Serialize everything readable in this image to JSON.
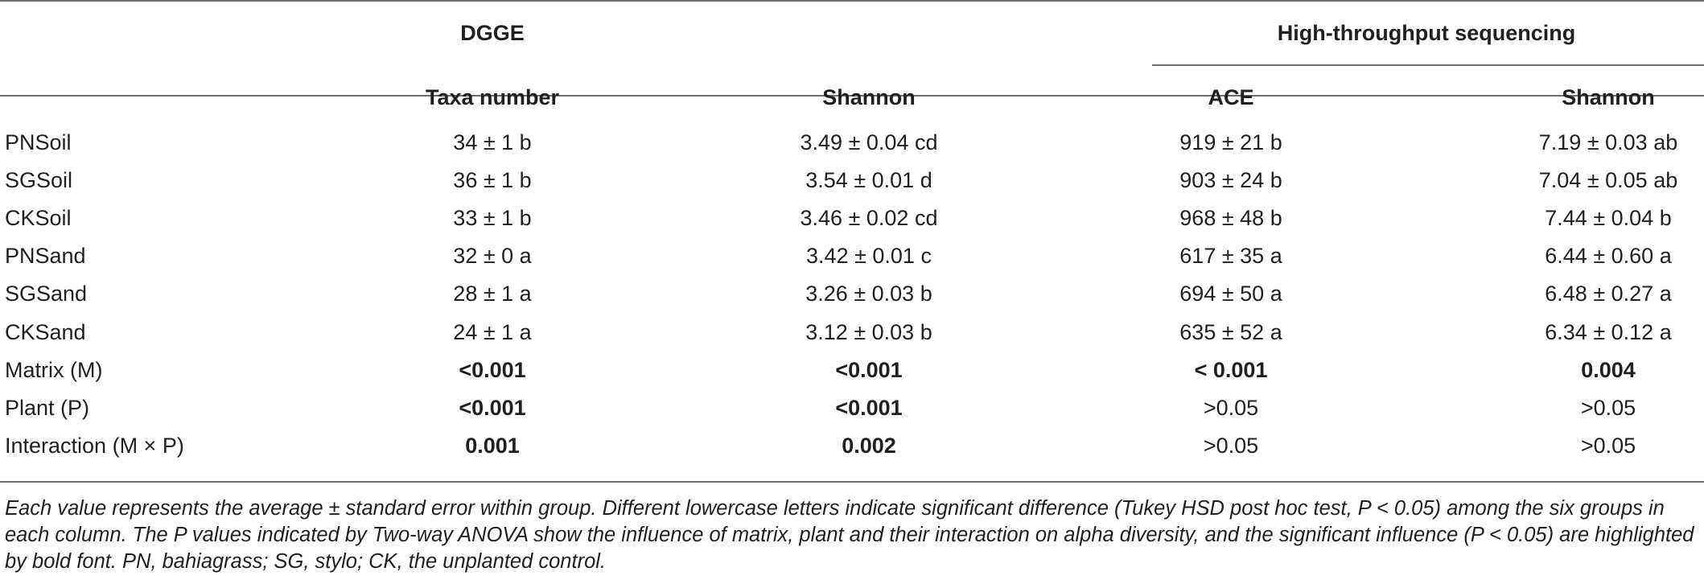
{
  "table": {
    "group_headers": {
      "dgge": "DGGE",
      "hts": "High-throughput sequencing"
    },
    "column_headers": [
      "Taxa number",
      "Shannon",
      "ACE",
      "Shannon"
    ],
    "rows": [
      {
        "label": "PNSoil",
        "cells": [
          "34 ± 1 b",
          "3.49 ± 0.04 cd",
          "919 ± 21 b",
          "7.19 ± 0.03 ab"
        ],
        "bold": [
          false,
          false,
          false,
          false
        ]
      },
      {
        "label": "SGSoil",
        "cells": [
          "36 ± 1 b",
          "3.54 ± 0.01 d",
          "903 ± 24 b",
          "7.04 ± 0.05 ab"
        ],
        "bold": [
          false,
          false,
          false,
          false
        ]
      },
      {
        "label": "CKSoil",
        "cells": [
          "33 ± 1 b",
          "3.46 ± 0.02 cd",
          "968 ± 48 b",
          "7.44 ± 0.04 b"
        ],
        "bold": [
          false,
          false,
          false,
          false
        ]
      },
      {
        "label": "PNSand",
        "cells": [
          "32 ± 0 a",
          "3.42 ± 0.01 c",
          "617 ± 35 a",
          "6.44 ± 0.60 a"
        ],
        "bold": [
          false,
          false,
          false,
          false
        ]
      },
      {
        "label": "SGSand",
        "cells": [
          "28 ± 1 a",
          "3.26 ± 0.03 b",
          "694 ± 50 a",
          "6.48 ± 0.27 a"
        ],
        "bold": [
          false,
          false,
          false,
          false
        ]
      },
      {
        "label": "CKSand",
        "cells": [
          "24 ± 1 a",
          "3.12 ± 0.03 b",
          "635 ± 52 a",
          "6.34 ± 0.12 a"
        ],
        "bold": [
          false,
          false,
          false,
          false
        ]
      },
      {
        "label": "Matrix (M)",
        "cells": [
          "<0.001",
          "<0.001",
          "< 0.001",
          "0.004"
        ],
        "bold": [
          true,
          true,
          true,
          true
        ]
      },
      {
        "label": "Plant (P)",
        "cells": [
          "<0.001",
          "<0.001",
          ">0.05",
          ">0.05"
        ],
        "bold": [
          true,
          true,
          false,
          false
        ]
      },
      {
        "label": "Interaction (M × P)",
        "cells": [
          "0.001",
          "0.002",
          ">0.05",
          ">0.05"
        ],
        "bold": [
          true,
          true,
          false,
          false
        ]
      }
    ]
  },
  "footnote": "Each value represents the average ± standard error within group. Different lowercase letters indicate significant difference (Tukey HSD post hoc test, P < 0.05) among the six groups in each column. The P values indicated by Two-way ANOVA show the influence of matrix, plant and their interaction on alpha diversity, and the significant influence (P < 0.05) are highlighted by bold font. PN, bahiagrass; SG, stylo; CK, the unplanted control."
}
